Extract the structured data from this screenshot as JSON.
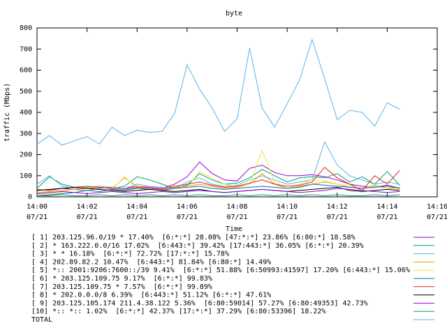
{
  "chart_data": {
    "type": "line",
    "title": "byte",
    "x_label": "Time",
    "y_label": "traffic (Mbps)",
    "xlim": [
      0,
      16
    ],
    "xticks": [
      {
        "value": 0,
        "label": "14:00",
        "date": "07/21"
      },
      {
        "value": 2,
        "label": "14:02",
        "date": "07/21"
      },
      {
        "value": 4,
        "label": "14:04",
        "date": "07/21"
      },
      {
        "value": 6,
        "label": "14:06",
        "date": "07/21"
      },
      {
        "value": 8,
        "label": "14:08",
        "date": "07/21"
      },
      {
        "value": 10,
        "label": "14:10",
        "date": "07/21"
      },
      {
        "value": 12,
        "label": "14:12",
        "date": "07/21"
      },
      {
        "value": 14,
        "label": "14:14",
        "date": "07/21"
      },
      {
        "value": 16,
        "label": "14:16",
        "date": "07/21"
      }
    ],
    "ylim": [
      0,
      800
    ],
    "yticks": [
      0,
      100,
      200,
      300,
      400,
      500,
      600,
      700,
      800
    ],
    "x": [
      0,
      0.5,
      1,
      1.5,
      2,
      2.5,
      3,
      3.5,
      4,
      4.5,
      5,
      5.5,
      6,
      6.5,
      7,
      7.5,
      8,
      8.5,
      9,
      9.5,
      10,
      10.5,
      11,
      11.5,
      12,
      12.5,
      13,
      13.5,
      14,
      14.5
    ],
    "series": [
      {
        "name": "[ 1] 203.125.96.0/19 * 17.40%  [6:*:*] 28.08% [47:*:*] 23.86% [6:80:*] 18.58%",
        "color": "#9400d3",
        "values": [
          30,
          35,
          40,
          35,
          30,
          40,
          45,
          40,
          50,
          45,
          40,
          60,
          95,
          165,
          110,
          80,
          75,
          135,
          150,
          115,
          100,
          100,
          105,
          95,
          80,
          60,
          50,
          45,
          55,
          40
        ]
      },
      {
        "name": "[ 2] * 163.222.0.0/16 17.02%  [6:443:*] 39.42% [17:443:*] 36.05% [6:*:*] 20.39%",
        "color": "#009e73",
        "values": [
          40,
          95,
          60,
          45,
          40,
          45,
          40,
          50,
          95,
          80,
          60,
          40,
          55,
          110,
          80,
          60,
          65,
          90,
          130,
          100,
          70,
          90,
          95,
          90,
          110,
          70,
          95,
          60,
          120,
          55
        ]
      },
      {
        "name": "[ 3] * * 16.18%  [6:*:*] 72.72% [17:*:*] 15.78%",
        "color": "#56b4e9",
        "values": [
          60,
          100,
          50,
          40,
          45,
          50,
          45,
          40,
          60,
          50,
          45,
          40,
          70,
          90,
          60,
          50,
          55,
          80,
          100,
          80,
          60,
          70,
          80,
          260,
          150,
          100,
          80,
          60,
          70,
          60
        ]
      },
      {
        "name": "[ 4] 202.89.82.2 10.47%  [6:443:*] 81.84% [6:80:*] 14.49%",
        "color": "#e69f00",
        "values": [
          20,
          25,
          30,
          35,
          40,
          45,
          40,
          90,
          50,
          40,
          35,
          45,
          50,
          60,
          50,
          40,
          45,
          60,
          110,
          60,
          40,
          50,
          60,
          70,
          60,
          45,
          40,
          55,
          40,
          45
        ]
      },
      {
        "name": "[ 5] *:: 2001:9206:7600::/39 9.41%  [6:*:*] 51.88% [6:50993:41597] 17.20% [6:443:*] 15.06%",
        "color": "#f0e442",
        "values": [
          10,
          15,
          20,
          40,
          30,
          45,
          35,
          95,
          40,
          35,
          30,
          40,
          45,
          120,
          90,
          60,
          50,
          60,
          220,
          70,
          40,
          60,
          80,
          75,
          60,
          50,
          40,
          50,
          40,
          35
        ]
      },
      {
        "name": "[ 6] * 203.125.109.75 9.17%  [6:*:*] 99.83%",
        "color": "#0072b2",
        "values": [
          5,
          10,
          15,
          20,
          30,
          25,
          35,
          30,
          40,
          35,
          30,
          40,
          45,
          50,
          40,
          35,
          40,
          45,
          50,
          45,
          40,
          45,
          60,
          55,
          50,
          45,
          40,
          45,
          50,
          40
        ]
      },
      {
        "name": "[ 7] 203.125.109.75 * 7.57%  [6:*:*] 99.89%",
        "color": "#e51e10",
        "values": [
          35,
          30,
          40,
          45,
          50,
          45,
          40,
          35,
          45,
          40,
          35,
          50,
          60,
          70,
          55,
          45,
          50,
          65,
          80,
          60,
          50,
          55,
          70,
          140,
          90,
          60,
          30,
          100,
          60,
          125
        ]
      },
      {
        "name": "[ 8] * 202.0.0.0/8 6.39%  [6:443:*] 51.12% [6:*:*] 47.61%",
        "color": "#000000",
        "values": [
          30,
          35,
          40,
          45,
          40,
          35,
          30,
          25,
          30,
          35,
          30,
          25,
          30,
          35,
          25,
          20,
          25,
          30,
          35,
          30,
          25,
          30,
          35,
          40,
          45,
          30,
          25,
          30,
          35,
          30
        ]
      },
      {
        "name": "[ 9] 203.125.105.174 211.4.38.122 5.36%  [6:80:59014] 57.27% [6:80:49353] 42.73%",
        "color": "#9400d3",
        "values": [
          15,
          20,
          25,
          20,
          15,
          20,
          25,
          20,
          15,
          20,
          25,
          20,
          25,
          30,
          25,
          20,
          25,
          30,
          35,
          30,
          25,
          20,
          25,
          30,
          40,
          35,
          30,
          25,
          20,
          25
        ]
      },
      {
        "name": "[10] *:: *:: 1.02%  [6:*:*] 42.37% [17:*:*] 37.29% [6:80:53396] 18.22%",
        "color": "#009e73",
        "values": [
          5,
          5,
          10,
          5,
          5,
          10,
          5,
          10,
          5,
          10,
          5,
          10,
          5,
          10,
          5,
          5,
          10,
          5,
          10,
          5,
          10,
          5,
          10,
          5,
          10,
          5,
          5,
          10,
          5,
          10
        ]
      },
      {
        "name": "TOTAL",
        "color": "#56b4e9",
        "values": [
          250,
          290,
          245,
          265,
          285,
          250,
          330,
          290,
          315,
          305,
          310,
          395,
          625,
          510,
          420,
          310,
          370,
          705,
          420,
          330,
          440,
          555,
          745,
          560,
          365,
          410,
          400,
          335,
          445,
          415
        ]
      }
    ]
  }
}
